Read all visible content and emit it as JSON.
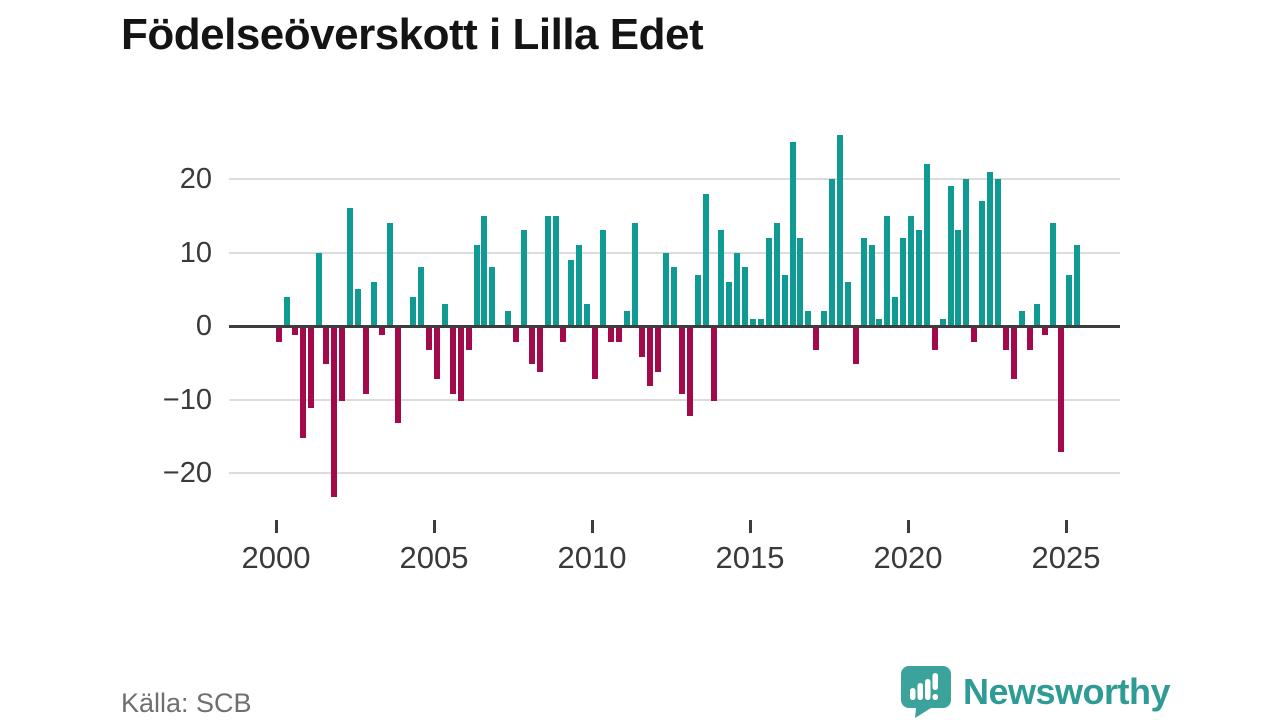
{
  "title": "Födelseöverskott i Lilla Edet",
  "footer": {
    "source": "Källa: SCB"
  },
  "brand": {
    "name": "Newsworthy",
    "icon": "newsworthy-speech-bubble-chart-icon"
  },
  "colors": {
    "positive_bar": "#0f9b94",
    "negative_bar": "#a30a4b",
    "grid": "#dcdcdc",
    "axis": "#3d3d3d",
    "tick_text": "#3a3a3a",
    "title_text": "#141414",
    "source_text": "#6f6f6f",
    "brand_teal": "#2e9b94",
    "background": "#ffffff"
  },
  "chart_data": {
    "type": "bar",
    "title": "Födelseöverskott i Lilla Edet",
    "x_start": "2000 Q1",
    "x_end": "2025 Q2",
    "x_frequency": "quarterly",
    "x_tick_labels": [
      "2000",
      "2005",
      "2010",
      "2015",
      "2020",
      "2025"
    ],
    "x_tick_quarter_indices": [
      0,
      20,
      40,
      60,
      80,
      100
    ],
    "y_ticks": [
      20,
      10,
      0,
      -10,
      -20
    ],
    "y_tick_labels": [
      "20",
      "10",
      "0",
      "−10",
      "−20"
    ],
    "ylim": [
      -24,
      27
    ],
    "grid": "horizontal",
    "legend": "none",
    "positive_color": "#0f9b94",
    "negative_color": "#a30a4b",
    "series": [
      {
        "name": "Födelseöverskott",
        "values": [
          -2,
          4,
          -1,
          -15,
          -11,
          10,
          -5,
          -23,
          -10,
          16,
          5,
          -9,
          6,
          -1,
          14,
          -13,
          0,
          4,
          8,
          -3,
          -7,
          3,
          -9,
          -10,
          -3,
          11,
          15,
          8,
          0,
          2,
          -2,
          13,
          -5,
          -6,
          15,
          15,
          -2,
          9,
          11,
          3,
          -7,
          13,
          -2,
          -2,
          2,
          14,
          -4,
          -8,
          -6,
          10,
          8,
          -9,
          -12,
          7,
          18,
          -10,
          13,
          6,
          10,
          8,
          1,
          1,
          12,
          14,
          7,
          25,
          12,
          2,
          -3,
          2,
          20,
          26,
          6,
          -5,
          12,
          11,
          1,
          15,
          4,
          12,
          15,
          13,
          22,
          -3,
          1,
          19,
          13,
          20,
          -2,
          17,
          21,
          20,
          -3,
          -7,
          2,
          -3,
          3,
          -1,
          14,
          -17,
          7,
          11
        ]
      }
    ]
  }
}
